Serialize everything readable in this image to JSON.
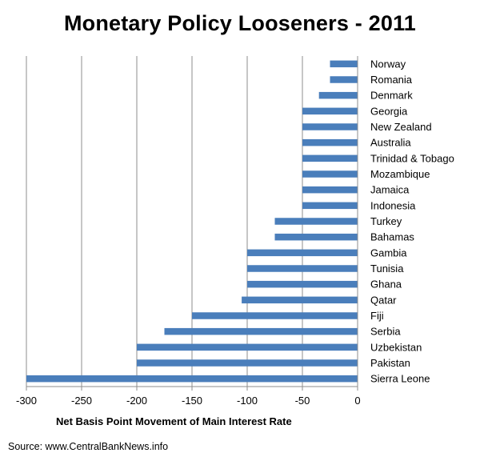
{
  "chart_data": {
    "type": "bar",
    "orientation": "horizontal",
    "title": "Monetary Policy Looseners - 2011",
    "xlabel": "Net Basis Point Movement of Main Interest Rate",
    "ylabel": "",
    "source": "Source: www.CentralBankNews.info",
    "xlim": [
      -300,
      0
    ],
    "xticks": [
      -300,
      -250,
      -200,
      -150,
      -100,
      -50,
      0
    ],
    "grid": "vertical",
    "bar_color": "#4a7ebb",
    "categories": [
      "Norway",
      "Romania",
      "Denmark",
      "Georgia",
      "New Zealand",
      "Australia",
      "Trinidad & Tobago",
      "Mozambique",
      "Jamaica",
      "Indonesia",
      "Turkey",
      "Bahamas",
      "Gambia",
      "Tunisia",
      "Ghana",
      "Qatar",
      "Fiji",
      "Serbia",
      "Uzbekistan",
      "Pakistan",
      "Sierra Leone"
    ],
    "values": [
      -25,
      -25,
      -35,
      -50,
      -50,
      -50,
      -50,
      -50,
      -50,
      -50,
      -75,
      -75,
      -100,
      -100,
      -100,
      -105,
      -150,
      -175,
      -200,
      -200,
      -300
    ]
  }
}
